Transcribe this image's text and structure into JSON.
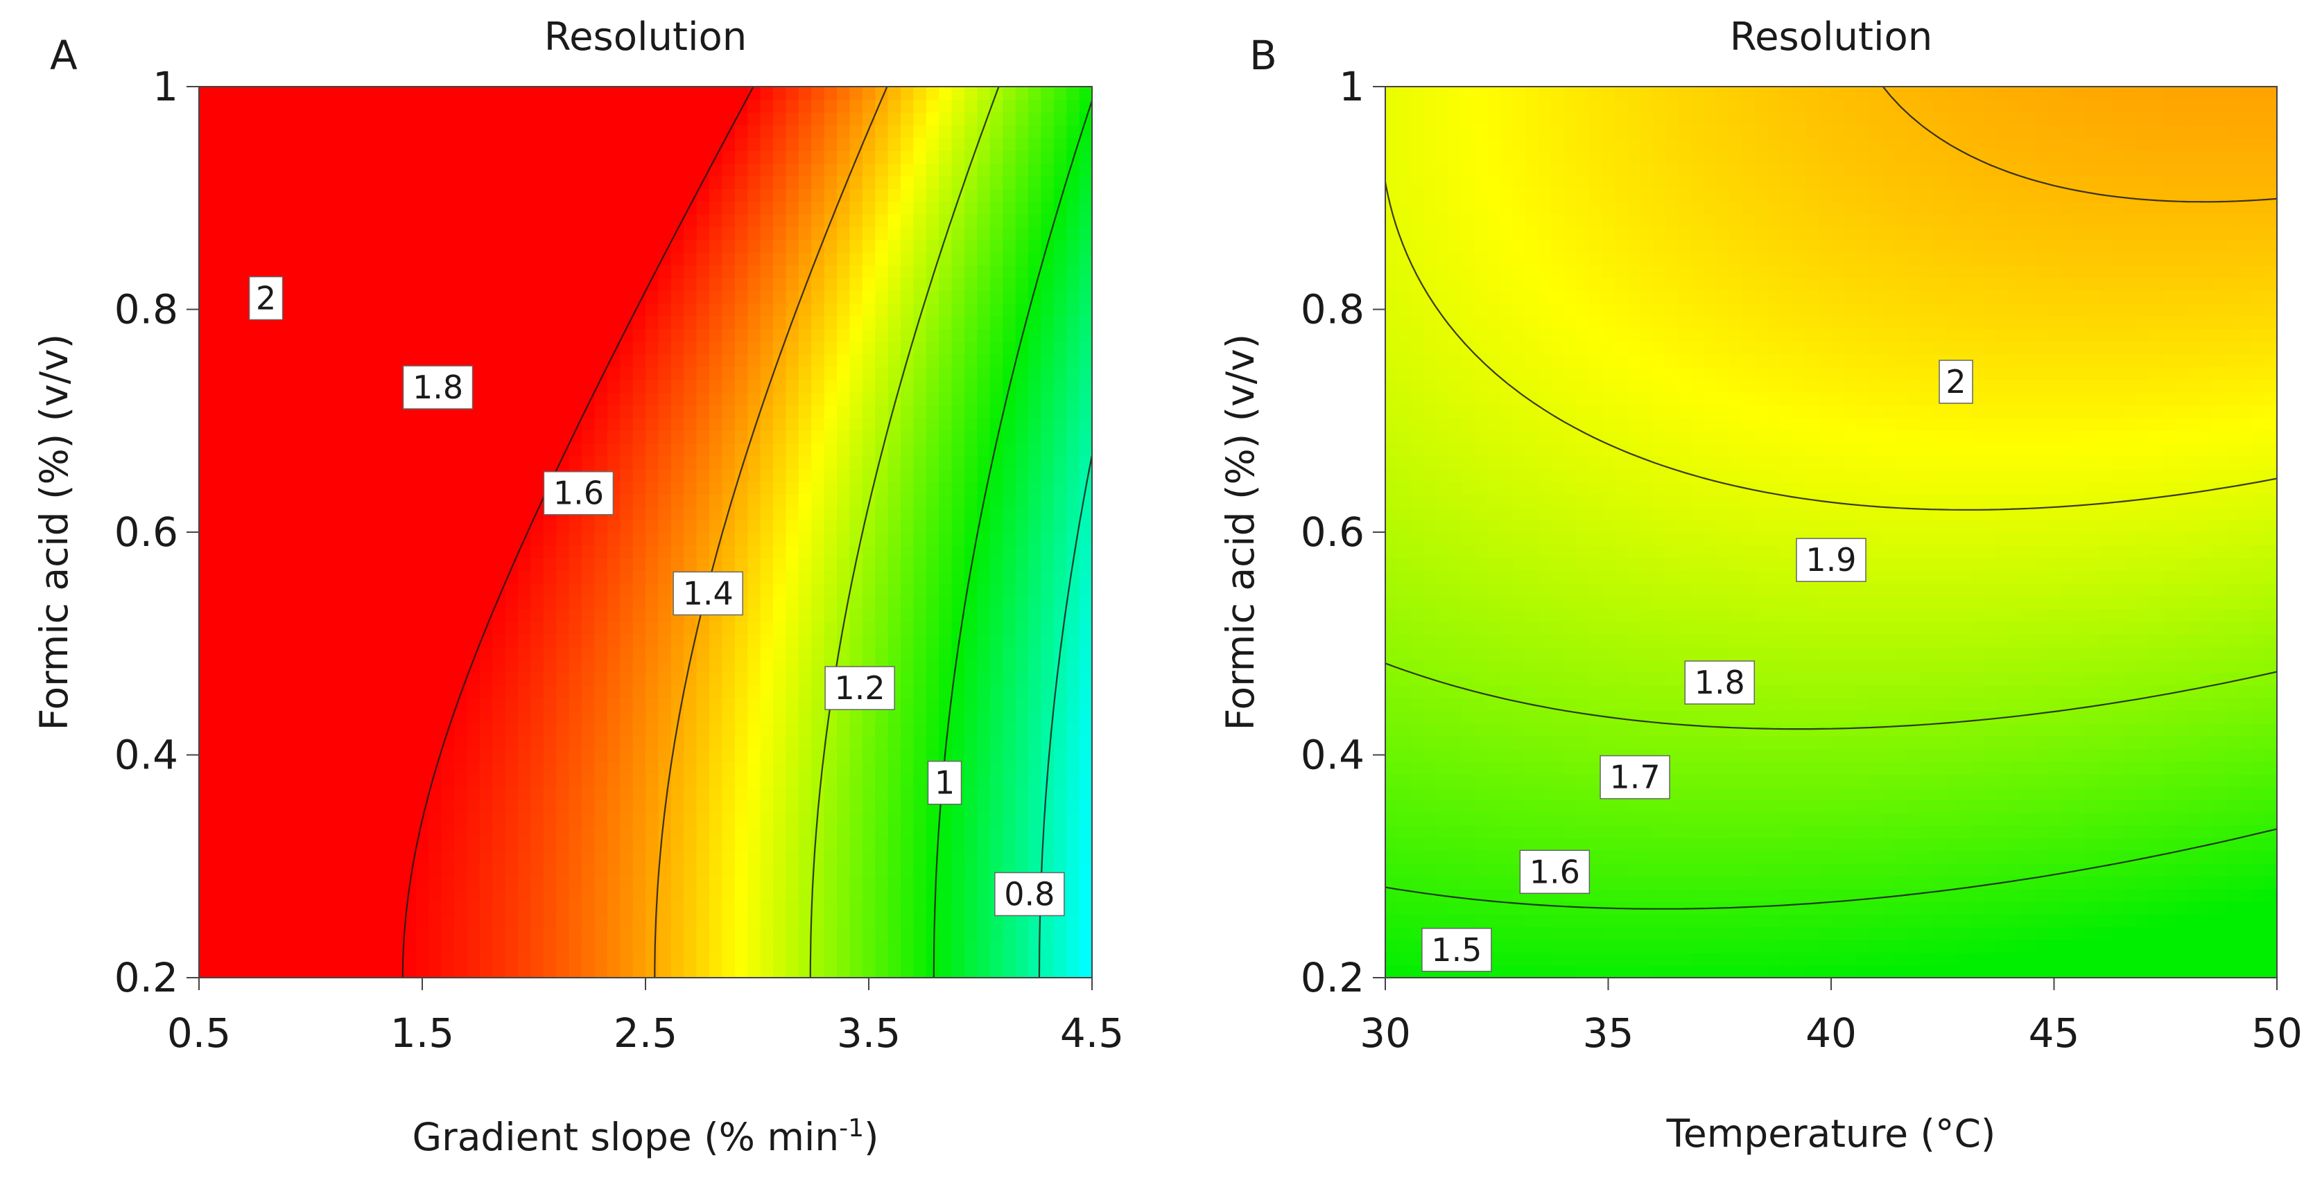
{
  "chart_data": [
    {
      "type": "contour",
      "panel_label": "A",
      "title": "Resolution",
      "xlabel": "Gradient slope (% min",
      "xlabel_superscript": "-1",
      "xlabel_suffix": ")",
      "ylabel": "Formic acid (%) (v/v)",
      "xlim": [
        0.5,
        4.5
      ],
      "ylim": [
        0.2,
        1.0
      ],
      "xticks": [
        0.5,
        1.5,
        2.5,
        3.5,
        4.5
      ],
      "xtick_labels": [
        "0.5",
        "1.5",
        "2.5",
        "3.5",
        "4.5"
      ],
      "yticks": [
        0.2,
        0.4,
        0.6,
        0.8,
        1.0
      ],
      "ytick_labels": [
        "0.2",
        "0.4",
        "0.6",
        "0.8",
        "1"
      ],
      "colorscale": {
        "min": 0.8,
        "max": 2.0,
        "colors": [
          "#3a5fe0",
          "#00ffff",
          "#00ee00",
          "#ffff00",
          "#ff0000"
        ]
      },
      "contour_levels": [
        0.8,
        1.0,
        1.2,
        1.4,
        1.6,
        1.8,
        2.0
      ],
      "contour_labels": [
        {
          "text": "2",
          "x": 0.8,
          "y": 0.81
        },
        {
          "text": "1.8",
          "x": 1.57,
          "y": 0.73
        },
        {
          "text": "1.6",
          "x": 2.2,
          "y": 0.635
        },
        {
          "text": "1.4",
          "x": 2.78,
          "y": 0.545
        },
        {
          "text": "1.2",
          "x": 3.46,
          "y": 0.46
        },
        {
          "text": "1",
          "x": 3.84,
          "y": 0.375
        },
        {
          "text": "0.8",
          "x": 4.22,
          "y": 0.275
        }
      ]
    },
    {
      "type": "contour",
      "panel_label": "B",
      "title": "Resolution",
      "xlabel": "Temperature (°C)",
      "ylabel": "Formic acid (%) (v/v)",
      "xlim": [
        30,
        50
      ],
      "ylim": [
        0.2,
        1.0
      ],
      "xticks": [
        30,
        35,
        40,
        45,
        50
      ],
      "xtick_labels": [
        "30",
        "35",
        "40",
        "45",
        "50"
      ],
      "yticks": [
        0.2,
        0.4,
        0.6,
        0.8,
        1.0
      ],
      "ytick_labels": [
        "0.2",
        "0.4",
        "0.6",
        "0.8",
        "1"
      ],
      "colorscale": {
        "min": 1.45,
        "max": 2.0,
        "colors": [
          "#00ee00",
          "#ffff00",
          "#ff0000"
        ]
      },
      "contour_levels": [
        1.5,
        1.6,
        1.7,
        1.8,
        1.9,
        2.0
      ],
      "contour_labels": [
        {
          "text": "2",
          "x": 42.8,
          "y": 0.735
        },
        {
          "text": "1.9",
          "x": 40.0,
          "y": 0.575
        },
        {
          "text": "1.8",
          "x": 37.5,
          "y": 0.465
        },
        {
          "text": "1.7",
          "x": 35.6,
          "y": 0.38
        },
        {
          "text": "1.6",
          "x": 33.8,
          "y": 0.295
        },
        {
          "text": "1.5",
          "x": 31.6,
          "y": 0.225
        }
      ]
    }
  ]
}
